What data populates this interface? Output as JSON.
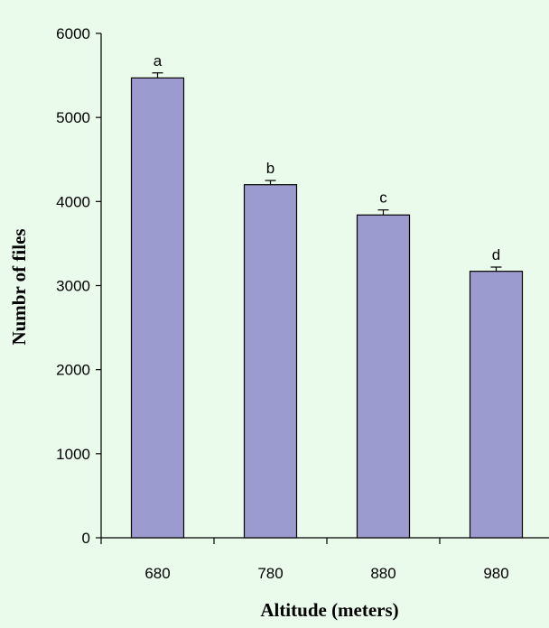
{
  "chart_data": {
    "type": "bar",
    "title": "",
    "xlabel": "Altitude (meters)",
    "ylabel": "Numbr of files",
    "categories": [
      "680",
      "780",
      "880",
      "980"
    ],
    "series": [
      {
        "values": [
          5470,
          4200,
          3840,
          3170
        ],
        "errors": [
          60,
          50,
          60,
          50
        ],
        "significance": [
          "a",
          "b",
          "c",
          "d"
        ]
      }
    ],
    "ylim": [
      0,
      6000
    ],
    "yticks": [
      0,
      1000,
      2000,
      3000,
      4000,
      5000,
      6000
    ],
    "grid": false,
    "legend": "none",
    "colors": {
      "bar_fill": "#9b9bcf",
      "bar_stroke": "#000000",
      "axis": "#000000",
      "background": "#ebfbeb"
    }
  }
}
